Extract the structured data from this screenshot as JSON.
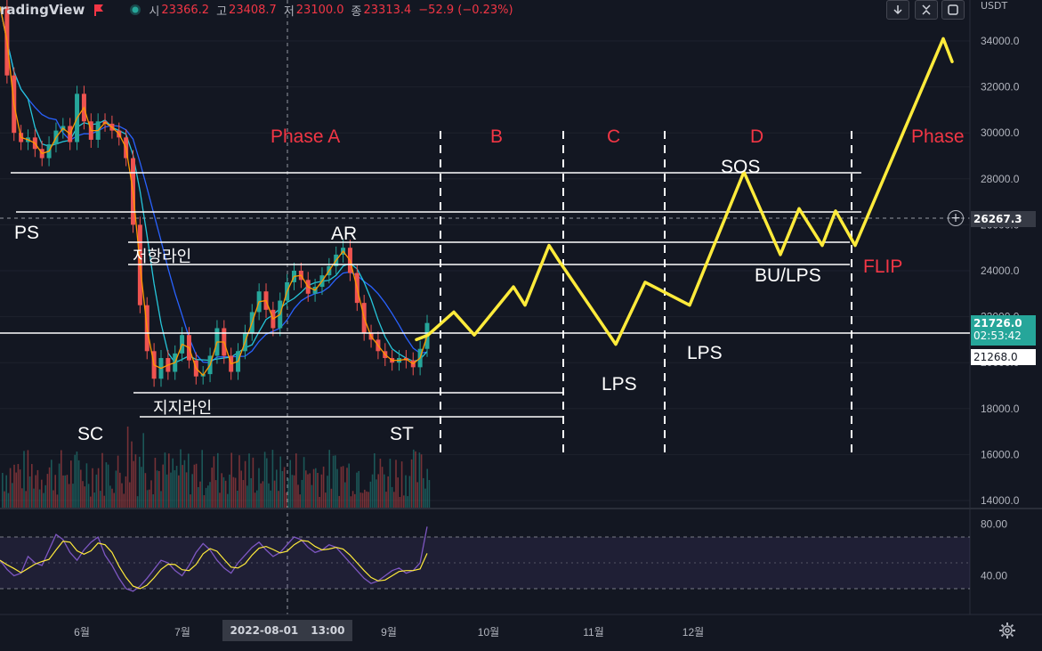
{
  "header": {
    "app_name": "radingView",
    "open_label": "시",
    "open_value": "23366.2",
    "high_label": "고",
    "high_value": "23408.7",
    "low_label": "저",
    "low_value": "23100.0",
    "close_label": "종",
    "close_value": "23313.4",
    "change": "−52.9 (−0.23%)",
    "currency": "USDT",
    "colors": {
      "down": "#f23645",
      "up": "#26a69a",
      "pattern": "#ffeb3b"
    }
  },
  "price_axis": {
    "ticks": [
      "34000.0",
      "32000.0",
      "30000.0",
      "28000.0",
      "26000.0",
      "24000.0",
      "22000.0",
      "20000.0",
      "18000.0",
      "16000.0",
      "14000.0"
    ],
    "tags": {
      "cursor_price": "26267.3",
      "last_price": "21726.0",
      "countdown": "02:53:42",
      "lower_price": "21268.0"
    }
  },
  "rsi_axis": {
    "ticks": [
      "80.00",
      "40.00"
    ]
  },
  "time_axis": {
    "ticks": [
      "6월",
      "7월",
      "9월",
      "10월",
      "11월",
      "12월"
    ],
    "cursor_date": "2022-08-01",
    "cursor_time": "13:00"
  },
  "annotations": {
    "phase_a": "Phase A",
    "phase_b": "B",
    "phase_c": "C",
    "phase_d": "D",
    "phase_e": "Phase",
    "ps": "PS",
    "sc": "SC",
    "ar": "AR",
    "st": "ST",
    "sos": "SOS",
    "lps_1": "LPS",
    "lps_2": "LPS",
    "bu_lps": "BU/LPS",
    "flip": "FLIP",
    "resistance": "저항라인",
    "support": "지지라인"
  },
  "chart_data": {
    "type": "line",
    "title": "",
    "price_candles_close": [
      35500,
      32500,
      30000,
      29600,
      29800,
      29300,
      28900,
      29500,
      30100,
      30300,
      29600,
      31700,
      30500,
      29700,
      30500,
      30400,
      30100,
      29800,
      28900,
      26000,
      22500,
      20500,
      19300,
      20200,
      19600,
      20400,
      21200,
      20100,
      19400,
      19500,
      20300,
      21500,
      20300,
      19600,
      20500,
      21300,
      22200,
      23100,
      22300,
      21500,
      22700,
      23500,
      24000,
      23600,
      23000,
      23300,
      23800,
      24200,
      24700,
      25000,
      23900,
      22600,
      21300,
      21000,
      20500,
      20200,
      20000,
      20200,
      20100,
      19800,
      20600,
      21726
    ],
    "forecast_path": [
      21000,
      21200,
      22200,
      21200,
      23300,
      22500,
      25100,
      24500,
      20800,
      23500,
      22500,
      28300,
      24700,
      26700,
      25100,
      26600,
      25100,
      34100,
      33100
    ],
    "levels": {
      "ps": 26700,
      "sos": 28300,
      "resistance": 25100,
      "resistance_low": 24300,
      "support": 18700,
      "support_low": 17800,
      "last": 21726,
      "lower": 21268
    },
    "rsi": [
      52,
      45,
      40,
      42,
      55,
      50,
      48,
      60,
      72,
      68,
      58,
      52,
      60,
      66,
      70,
      56,
      48,
      38,
      30,
      28,
      32,
      38,
      45,
      52,
      50,
      44,
      40,
      48,
      58,
      65,
      60,
      52,
      46,
      42,
      50,
      56,
      62,
      66,
      60,
      55,
      58,
      64,
      70,
      68,
      62,
      58,
      60,
      64,
      62,
      56,
      50,
      44,
      38,
      34,
      36,
      40,
      44,
      46,
      42,
      44,
      50,
      78
    ],
    "rsi_band": [
      30,
      70
    ]
  }
}
